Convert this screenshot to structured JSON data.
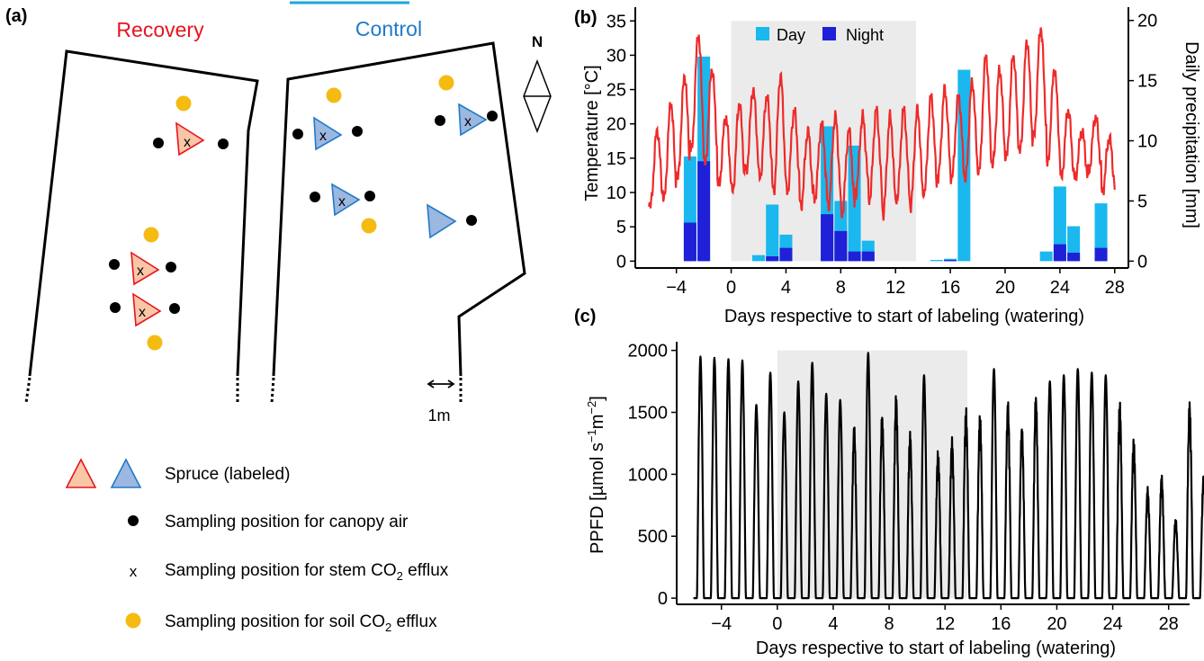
{
  "panel_a": {
    "label": "(a)",
    "plots": [
      {
        "name": "Recovery",
        "color": "#e8141e"
      },
      {
        "name": "Control",
        "color": "#1f7ac8"
      }
    ],
    "north": "N",
    "scale": "1m",
    "markers": [
      {
        "plot": 0,
        "kind": "triangle",
        "x_mark": "x"
      }
    ],
    "legend": [
      {
        "symbol": "triangles",
        "label": "Spruce (labeled)"
      },
      {
        "symbol": "black-dot",
        "label": "Sampling position for canopy air"
      },
      {
        "symbol": "x",
        "label_pre": "Sampling position for stem CO",
        "sub": "2",
        "label_post": " efflux"
      },
      {
        "symbol": "yellow-dot",
        "label_pre": "Sampling position for soil CO",
        "sub": "2",
        "label_post": " efflux"
      }
    ],
    "colors": {
      "recovery_fill": "#f9c7a8",
      "control_fill": "#9cb7e0",
      "dot": "#000000",
      "soil_dot": "#f5bb12"
    }
  },
  "chart_data": [
    {
      "panel": "(b)",
      "type": "line+bar",
      "xlabel": "Days respective to start of labeling (watering)",
      "ylabel": "Temperature [°C]",
      "ylabel2": "Daily precipitation [mm]",
      "xlim": [
        -7,
        29
      ],
      "ylim": [
        -1,
        37
      ],
      "y2lim": [
        -0.57,
        21.1
      ],
      "xticks": [
        -4,
        0,
        4,
        8,
        12,
        16,
        20,
        24,
        28
      ],
      "yticks": [
        0,
        5,
        10,
        15,
        20,
        25,
        30,
        35
      ],
      "y2ticks": [
        0,
        5,
        10,
        15,
        20
      ],
      "shaded": [
        0,
        13.5
      ],
      "legend": [
        {
          "name": "Day",
          "color": "#1ab8ee"
        },
        {
          "name": "Night",
          "color": "#2020d8"
        }
      ],
      "temperature_color": "#ee2a2a",
      "temperature_daily": [
        {
          "day": -6,
          "min": 8,
          "max": 19
        },
        {
          "day": -5,
          "min": 9,
          "max": 23
        },
        {
          "day": -4,
          "min": 12,
          "max": 27
        },
        {
          "day": -3,
          "min": 16,
          "max": 33
        },
        {
          "day": -2,
          "min": 14,
          "max": 28
        },
        {
          "day": -1,
          "min": 11,
          "max": 21
        },
        {
          "day": 0,
          "min": 10,
          "max": 23
        },
        {
          "day": 1,
          "min": 13,
          "max": 25
        },
        {
          "day": 2,
          "min": 12,
          "max": 24
        },
        {
          "day": 3,
          "min": 10,
          "max": 27
        },
        {
          "day": 4,
          "min": 10,
          "max": 22
        },
        {
          "day": 5,
          "min": 8,
          "max": 19
        },
        {
          "day": 6,
          "min": 9,
          "max": 20
        },
        {
          "day": 7,
          "min": 8,
          "max": 21
        },
        {
          "day": 8,
          "min": 7,
          "max": 19
        },
        {
          "day": 9,
          "min": 10,
          "max": 21
        },
        {
          "day": 10,
          "min": 9,
          "max": 22
        },
        {
          "day": 11,
          "min": 7,
          "max": 21
        },
        {
          "day": 12,
          "min": 9,
          "max": 22
        },
        {
          "day": 13,
          "min": 8,
          "max": 22
        },
        {
          "day": 14,
          "min": 10,
          "max": 24
        },
        {
          "day": 15,
          "min": 12,
          "max": 25
        },
        {
          "day": 16,
          "min": 12,
          "max": 24
        },
        {
          "day": 17,
          "min": 12,
          "max": 26
        },
        {
          "day": 18,
          "min": 13,
          "max": 30
        },
        {
          "day": 19,
          "min": 14,
          "max": 28
        },
        {
          "day": 20,
          "min": 15,
          "max": 30
        },
        {
          "day": 21,
          "min": 16,
          "max": 32
        },
        {
          "day": 22,
          "min": 18,
          "max": 34
        },
        {
          "day": 23,
          "min": 14,
          "max": 28
        },
        {
          "day": 24,
          "min": 12,
          "max": 22
        },
        {
          "day": 25,
          "min": 12,
          "max": 19
        },
        {
          "day": 26,
          "min": 13,
          "max": 21
        },
        {
          "day": 27,
          "min": 10,
          "max": 18
        },
        {
          "day": 28,
          "min": 8,
          "max": 16
        }
      ],
      "precipitation": [
        {
          "day": -3,
          "day_mm": 5.5,
          "night_mm": 3.2
        },
        {
          "day": -2,
          "day_mm": 8.7,
          "night_mm": 8.3
        },
        {
          "day": 2,
          "day_mm": 0.5,
          "night_mm": 0.0
        },
        {
          "day": 3,
          "day_mm": 4.3,
          "night_mm": 0.4
        },
        {
          "day": 4,
          "day_mm": 1.1,
          "night_mm": 1.1
        },
        {
          "day": 7,
          "day_mm": 7.3,
          "night_mm": 3.9
        },
        {
          "day": 8,
          "day_mm": 2.5,
          "night_mm": 2.5
        },
        {
          "day": 9,
          "day_mm": 8.8,
          "night_mm": 0.8
        },
        {
          "day": 10,
          "day_mm": 0.9,
          "night_mm": 0.8
        },
        {
          "day": 15,
          "day_mm": 0.1,
          "night_mm": 0.0
        },
        {
          "day": 16,
          "day_mm": 0.1,
          "night_mm": 0.1
        },
        {
          "day": 17,
          "day_mm": 15.9,
          "night_mm": 0.0
        },
        {
          "day": 23,
          "day_mm": 0.8,
          "night_mm": 0.0
        },
        {
          "day": 24,
          "day_mm": 4.8,
          "night_mm": 1.4
        },
        {
          "day": 25,
          "day_mm": 2.2,
          "night_mm": 0.7
        },
        {
          "day": 27,
          "day_mm": 3.7,
          "night_mm": 1.1
        }
      ]
    },
    {
      "panel": "(c)",
      "type": "line",
      "xlabel": "Days respective to start of labeling (watering)",
      "ylabel_pre": "PPFD [µmol  s",
      "ylabel_sup1": "−1",
      "ylabel_mid": "m",
      "ylabel_sup2": "−2",
      "ylabel_post": "]",
      "xlim": [
        -7.2,
        29.5
      ],
      "ylim": [
        -50,
        2070
      ],
      "xticks": [
        -4,
        0,
        4,
        8,
        12,
        16,
        20,
        24,
        28
      ],
      "yticks": [
        0,
        500,
        1000,
        1500,
        2000
      ],
      "shaded": [
        0,
        13.6
      ],
      "line_color": "#000000",
      "daily_peaks": [
        1950,
        1940,
        1930,
        1920,
        1560,
        1820,
        1500,
        1750,
        1900,
        1650,
        1600,
        1400,
        1980,
        1500,
        1650,
        1350,
        1800,
        1200,
        1300,
        1550,
        1500,
        1850,
        1600,
        1400,
        1650,
        1750,
        1800,
        1850,
        1820,
        1800,
        1600,
        1300,
        900,
        1000,
        650,
        1600,
        1000,
        1970,
        1650
      ],
      "first_day": -6
    }
  ]
}
